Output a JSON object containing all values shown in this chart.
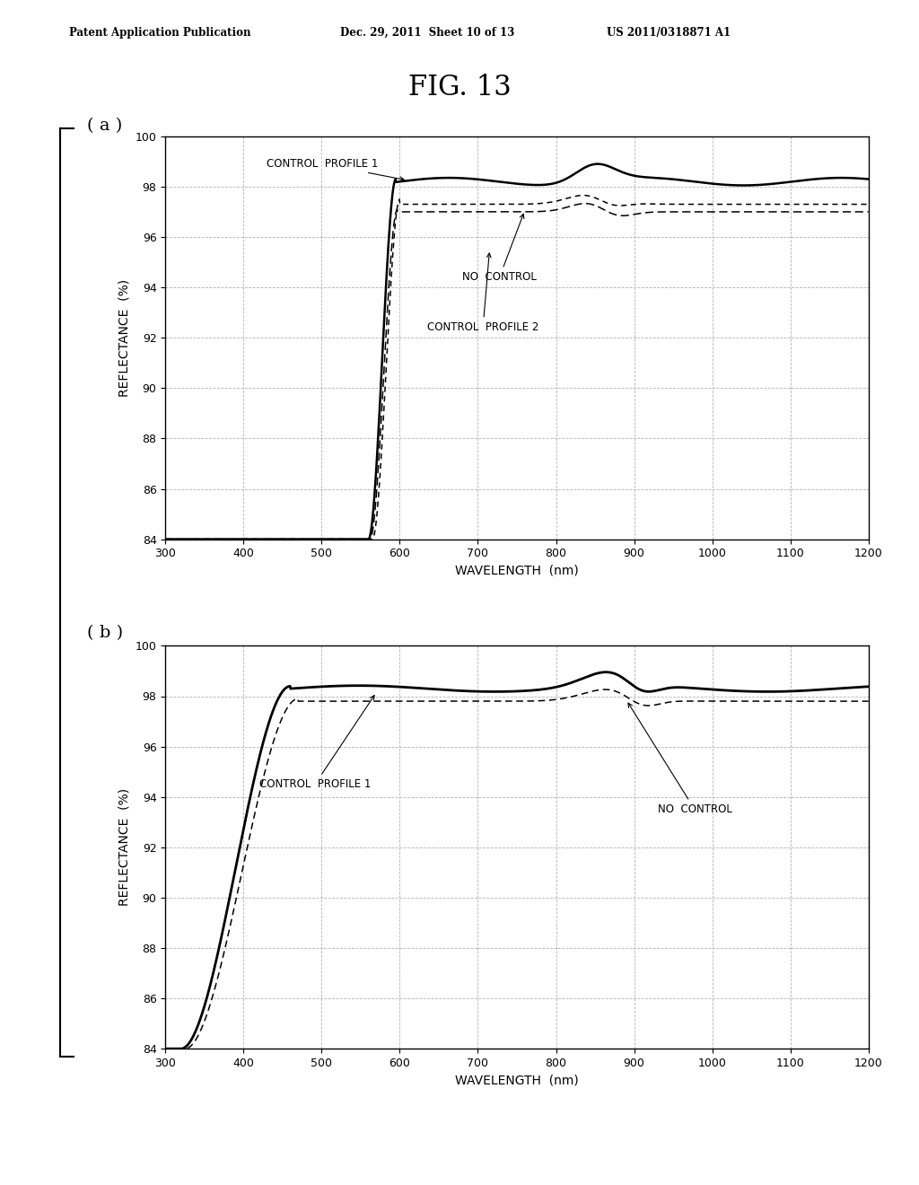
{
  "fig_title": "FIG. 13",
  "header_left": "Patent Application Publication",
  "header_mid": "Dec. 29, 2011  Sheet 10 of 13",
  "header_right": "US 2011/0318871 A1",
  "subplot_a_label": "( a )",
  "subplot_b_label": "( b )",
  "xlabel": "WAVELENGTH  (nm)",
  "ylabel": "REFLECTANCE  (%)",
  "xlim": [
    300,
    1200
  ],
  "ylim": [
    84,
    100
  ],
  "xticks": [
    300,
    400,
    500,
    600,
    700,
    800,
    900,
    1000,
    1100,
    1200
  ],
  "yticks": [
    84,
    86,
    88,
    90,
    92,
    94,
    96,
    98,
    100
  ],
  "background_color": "#ffffff",
  "grid_color": "#aaaaaa"
}
